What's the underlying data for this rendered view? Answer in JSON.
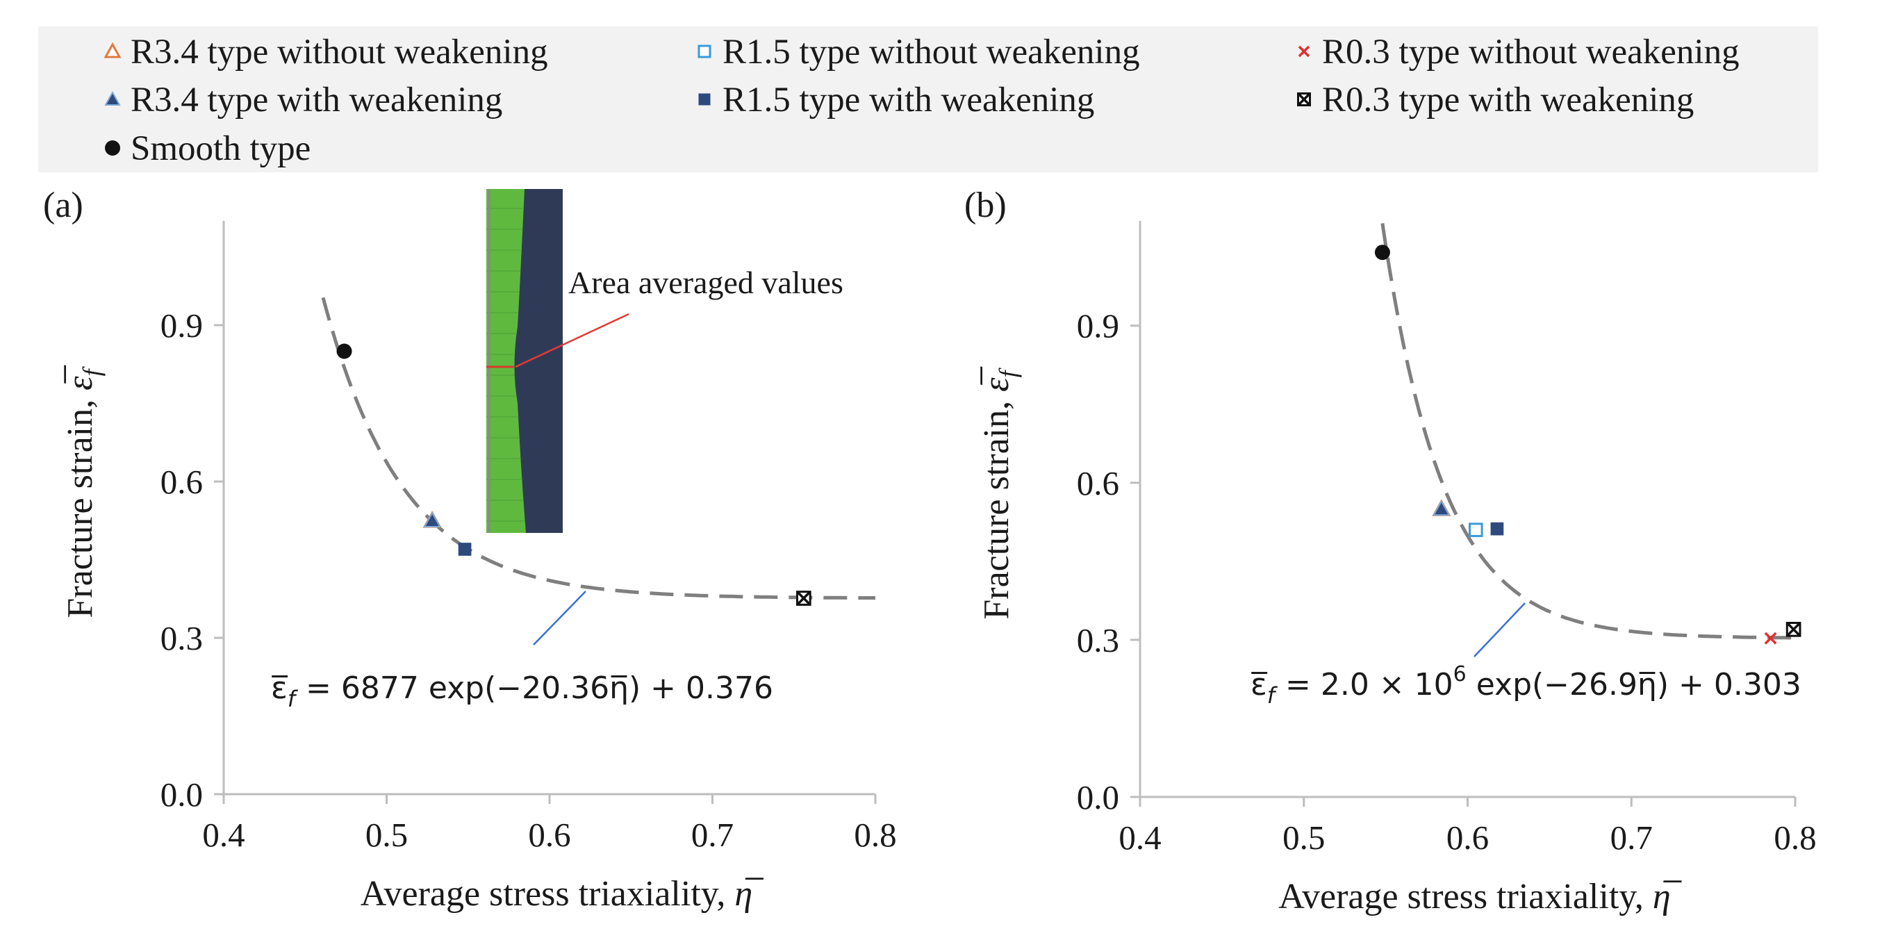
{
  "legend": {
    "items": [
      {
        "label": "R3.4 type without weakening",
        "marker": "triangle-open",
        "color": "#e07a3c"
      },
      {
        "label": "R1.5 type without weakening",
        "marker": "square-open",
        "color": "#3a9ad9"
      },
      {
        "label": "R0.3 type without weakening",
        "marker": "x",
        "color": "#e03030"
      },
      {
        "label": "R3.4 type with weakening",
        "marker": "triangle-filled",
        "color": "#2e4a7d"
      },
      {
        "label": "R1.5  type with weakening",
        "marker": "square-filled",
        "color": "#2e4a7d"
      },
      {
        "label": "R0.3 type with weakening",
        "marker": "boxed-x",
        "color": "#111111"
      },
      {
        "label": "Smooth type",
        "marker": "circle",
        "color": "#111111"
      }
    ]
  },
  "chart_data": [
    {
      "type": "scatter",
      "panel_label": "(a)",
      "xlabel": "Average stress triaxiality, ",
      "xlabel_symbol": "η̅",
      "ylabel": "Fracture strain, ",
      "ylabel_symbol": "ε̅",
      "ylabel_sub": "f",
      "xlim": [
        0.4,
        0.8
      ],
      "ylim": [
        0.0,
        1.1
      ],
      "xticks": [
        "0.4",
        "0.5",
        "0.6",
        "0.7",
        "0.8"
      ],
      "yticks": [
        "0.0",
        "0.3",
        "0.6",
        "0.9"
      ],
      "ytick_values": [
        0.0,
        0.3,
        0.6,
        0.9
      ],
      "xtick_values": [
        0.4,
        0.5,
        0.6,
        0.7,
        0.8
      ],
      "points": [
        {
          "series": "Smooth type",
          "x": 0.474,
          "y": 0.85
        },
        {
          "series": "R3.4 type without weakening",
          "x": 0.528,
          "y": 0.525
        },
        {
          "series": "R3.4 type with weakening",
          "x": 0.528,
          "y": 0.525
        },
        {
          "series": "R1.5  type with weakening",
          "x": 0.548,
          "y": 0.47
        },
        {
          "series": "R0.3 type without weakening",
          "x": 0.756,
          "y": 0.376
        },
        {
          "series": "R0.3 type with weakening",
          "x": 0.756,
          "y": 0.376
        }
      ],
      "fit": {
        "a": 6877,
        "b": -20.36,
        "c": 0.376,
        "x_range": [
          0.461,
          0.8
        ]
      },
      "equation": "= 6877 exp(−20.36η̅) + 0.376",
      "annotation": "Area averaged values"
    },
    {
      "type": "scatter",
      "panel_label": "(b)",
      "xlabel": "Average stress triaxiality, ",
      "xlabel_symbol": "η̅",
      "ylabel": "Fracture strain, ",
      "ylabel_symbol": "ε̅",
      "ylabel_sub": "f",
      "xlim": [
        0.4,
        0.8
      ],
      "ylim": [
        0.0,
        1.1
      ],
      "xticks": [
        "0.4",
        "0.5",
        "0.6",
        "0.7",
        "0.8"
      ],
      "yticks": [
        "0.0",
        "0.3",
        "0.6",
        "0.9"
      ],
      "ytick_values": [
        0.0,
        0.3,
        0.6,
        0.9
      ],
      "xtick_values": [
        0.4,
        0.5,
        0.6,
        0.7,
        0.8
      ],
      "points": [
        {
          "series": "Smooth type",
          "x": 0.548,
          "y": 1.04
        },
        {
          "series": "R3.4 type without weakening",
          "x": 0.584,
          "y": 0.55
        },
        {
          "series": "R3.4 type with weakening",
          "x": 0.584,
          "y": 0.55
        },
        {
          "series": "R1.5 type without weakening",
          "x": 0.605,
          "y": 0.51
        },
        {
          "series": "R1.5  type with weakening",
          "x": 0.618,
          "y": 0.512
        },
        {
          "series": "R0.3 type without weakening",
          "x": 0.785,
          "y": 0.303
        },
        {
          "series": "R0.3 type with weakening",
          "x": 0.799,
          "y": 0.32
        }
      ],
      "fit": {
        "a": 2000000,
        "b": -26.9,
        "c": 0.303,
        "x_range": [
          0.548,
          0.8
        ]
      },
      "equation_prefix": "= 2.0 × 10",
      "equation_exp": "6",
      "equation_suffix": " exp(−26.9η̅) + 0.303"
    }
  ]
}
